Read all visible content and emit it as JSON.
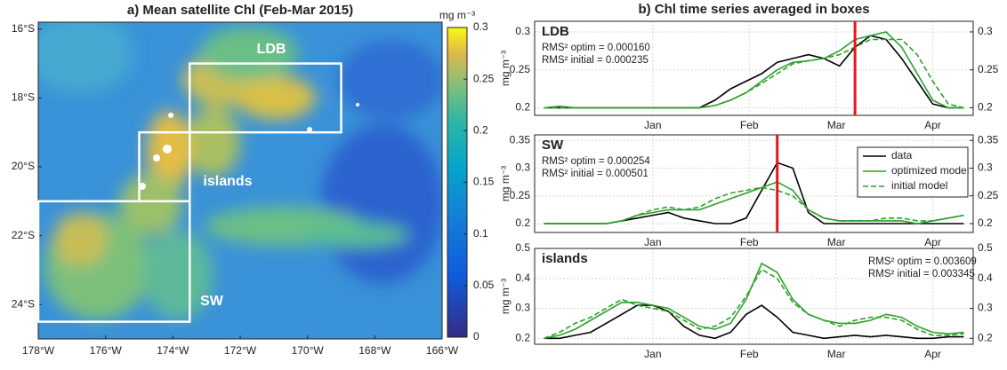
{
  "chart_data": [
    {
      "type": "map",
      "title": "a) Mean satellite Chl (Feb-Mar 2015)",
      "xlim": [
        -178,
        -166
      ],
      "ylim": [
        -25,
        -15.8
      ],
      "xticks": [
        {
          "value": -178,
          "label": "178°W"
        },
        {
          "value": -176,
          "label": "176°W"
        },
        {
          "value": -174,
          "label": "174°W"
        },
        {
          "value": -172,
          "label": "172°W"
        },
        {
          "value": -170,
          "label": "170°W"
        },
        {
          "value": -168,
          "label": "168°W"
        },
        {
          "value": -166,
          "label": "166°W"
        }
      ],
      "yticks": [
        {
          "value": -16,
          "label": "16°S"
        },
        {
          "value": -18,
          "label": "18°S"
        },
        {
          "value": -20,
          "label": "20°S"
        },
        {
          "value": -22,
          "label": "22°S"
        },
        {
          "value": -24,
          "label": "24°S"
        }
      ],
      "colorbar_label": "mg m⁻³",
      "clim": [
        0,
        0.3
      ],
      "cticks": [
        0,
        0.05,
        0.1,
        0.15,
        0.2,
        0.25,
        0.3
      ],
      "boxes": [
        {
          "name": "LDB",
          "lon": [
            -173.5,
            -169
          ],
          "lat": [
            -17,
            -19
          ]
        },
        {
          "name": "islands",
          "lon": [
            -175,
            -173.5
          ],
          "lat": [
            -19,
            -21
          ]
        },
        {
          "name": "SW",
          "lon": [
            -178,
            -173.5
          ],
          "lat": [
            -21,
            -24.5
          ]
        }
      ],
      "box_color": "#ffffff"
    },
    {
      "type": "line",
      "title": "b) Chl time series averaged in boxes",
      "panel_label": "LDB",
      "ylabel": "mg m⁻³",
      "annotations": [
        "RMS² optim = 0.000160",
        "RMS² initial = 0.000235"
      ],
      "x": [
        -35,
        -30,
        -25,
        -20,
        -15,
        -10,
        -5,
        0,
        5,
        10,
        15,
        20,
        25,
        30,
        35,
        40,
        45,
        50,
        55,
        60,
        65,
        70,
        75,
        80,
        85,
        90,
        95,
        100
      ],
      "xlim": [
        -38,
        103
      ],
      "xticks": [
        {
          "value": 0,
          "label": "Jan"
        },
        {
          "value": 31,
          "label": "Feb"
        },
        {
          "value": 59,
          "label": "Mar"
        },
        {
          "value": 90,
          "label": "Apr"
        }
      ],
      "ylim": [
        0.19,
        0.314
      ],
      "yticks": [
        0.2,
        0.25,
        0.3
      ],
      "y2lim": [
        0.19,
        0.314
      ],
      "y2ticks": [
        0.2,
        0.25,
        0.3
      ],
      "grid": true,
      "vline": {
        "x": 65,
        "color": "#e8141b"
      },
      "series": [
        {
          "name": "data",
          "color": "#000000",
          "dash": false,
          "values": [
            0.2,
            0.2,
            0.2,
            0.2,
            0.2,
            0.2,
            0.2,
            0.2,
            0.2,
            0.2,
            0.2,
            0.21,
            0.225,
            0.235,
            0.245,
            0.26,
            0.265,
            0.27,
            0.265,
            0.255,
            0.28,
            0.295,
            0.29,
            0.265,
            0.235,
            0.205,
            0.2,
            0.2
          ]
        },
        {
          "name": "optimized model",
          "color": "#2ca02c",
          "dash": false,
          "values": [
            0.2,
            0.202,
            0.2,
            0.2,
            0.2,
            0.2,
            0.2,
            0.2,
            0.2,
            0.2,
            0.2,
            0.203,
            0.21,
            0.22,
            0.235,
            0.25,
            0.26,
            0.262,
            0.265,
            0.275,
            0.29,
            0.295,
            0.3,
            0.28,
            0.245,
            0.21,
            0.2,
            0.2
          ]
        },
        {
          "name": "initial model",
          "color": "#2ca02c",
          "dash": true,
          "values": [
            0.2,
            0.2,
            0.2,
            0.2,
            0.2,
            0.2,
            0.2,
            0.2,
            0.2,
            0.2,
            0.2,
            0.203,
            0.21,
            0.22,
            0.232,
            0.245,
            0.258,
            0.262,
            0.265,
            0.27,
            0.28,
            0.29,
            0.29,
            0.29,
            0.27,
            0.235,
            0.205,
            0.2
          ]
        }
      ]
    },
    {
      "type": "line",
      "panel_label": "SW",
      "ylabel": "mg m⁻³",
      "annotations": [
        "RMS² optim = 0.000254",
        "RMS² initial = 0.000501"
      ],
      "x": [
        -35,
        -30,
        -25,
        -20,
        -15,
        -10,
        -5,
        0,
        5,
        10,
        15,
        20,
        25,
        30,
        35,
        40,
        45,
        50,
        55,
        60,
        65,
        70,
        75,
        80,
        85,
        90,
        95,
        100
      ],
      "xlim": [
        -38,
        103
      ],
      "xticks": [
        {
          "value": 0,
          "label": "Jan"
        },
        {
          "value": 31,
          "label": "Feb"
        },
        {
          "value": 59,
          "label": "Mar"
        },
        {
          "value": 90,
          "label": "Apr"
        }
      ],
      "ylim": [
        0.184,
        0.36
      ],
      "yticks": [
        0.2,
        0.25,
        0.3,
        0.35
      ],
      "y2lim": [
        0.184,
        0.36
      ],
      "y2ticks": [
        0.2,
        0.25,
        0.3,
        0.35
      ],
      "grid": true,
      "vline": {
        "x": 40,
        "color": "#e8141b"
      },
      "legend": "upper right",
      "series": [
        {
          "name": "data",
          "color": "#000000",
          "dash": false,
          "values": [
            0.2,
            0.2,
            0.2,
            0.2,
            0.2,
            0.205,
            0.21,
            0.215,
            0.22,
            0.21,
            0.205,
            0.2,
            0.2,
            0.21,
            0.26,
            0.31,
            0.3,
            0.22,
            0.2,
            0.2,
            0.2,
            0.2,
            0.2,
            0.2,
            0.2,
            0.2,
            0.2,
            0.2
          ]
        },
        {
          "name": "optimized model",
          "color": "#2ca02c",
          "dash": false,
          "values": [
            0.2,
            0.2,
            0.2,
            0.2,
            0.2,
            0.205,
            0.215,
            0.22,
            0.225,
            0.225,
            0.225,
            0.235,
            0.245,
            0.255,
            0.265,
            0.275,
            0.26,
            0.225,
            0.21,
            0.205,
            0.205,
            0.205,
            0.205,
            0.205,
            0.2,
            0.205,
            0.21,
            0.215
          ]
        },
        {
          "name": "initial model",
          "color": "#2ca02c",
          "dash": true,
          "values": [
            0.2,
            0.2,
            0.2,
            0.2,
            0.2,
            0.205,
            0.215,
            0.225,
            0.23,
            0.225,
            0.23,
            0.245,
            0.255,
            0.26,
            0.265,
            0.26,
            0.25,
            0.225,
            0.21,
            0.205,
            0.205,
            0.205,
            0.21,
            0.21,
            0.205,
            0.205,
            0.21,
            0.215
          ]
        }
      ]
    },
    {
      "type": "line",
      "panel_label": "islands",
      "ylabel": "mg m⁻³",
      "annotations": [
        "RMS² optim = 0.003609",
        "RMS² initial = 0.003345"
      ],
      "x": [
        -35,
        -30,
        -25,
        -20,
        -15,
        -10,
        -5,
        0,
        5,
        10,
        15,
        20,
        25,
        30,
        35,
        40,
        45,
        50,
        55,
        60,
        65,
        70,
        75,
        80,
        85,
        90,
        95,
        100
      ],
      "xlim": [
        -38,
        103
      ],
      "xticks": [
        {
          "value": 0,
          "label": "Jan"
        },
        {
          "value": 31,
          "label": "Feb"
        },
        {
          "value": 59,
          "label": "Mar"
        },
        {
          "value": 90,
          "label": "Apr"
        }
      ],
      "ylim": [
        0.18,
        0.5
      ],
      "yticks": [
        0.2,
        0.3,
        0.4,
        0.5
      ],
      "y2lim": [
        0.18,
        0.5
      ],
      "y2ticks": [
        0.2,
        0.3,
        0.4,
        0.5
      ],
      "grid": true,
      "series": [
        {
          "name": "data",
          "color": "#000000",
          "dash": false,
          "values": [
            0.2,
            0.2,
            0.21,
            0.22,
            0.25,
            0.28,
            0.31,
            0.31,
            0.29,
            0.24,
            0.21,
            0.2,
            0.22,
            0.28,
            0.31,
            0.27,
            0.22,
            0.21,
            0.2,
            0.205,
            0.21,
            0.205,
            0.21,
            0.205,
            0.2,
            0.2,
            0.205,
            0.205
          ]
        },
        {
          "name": "optimized model",
          "color": "#2ca02c",
          "dash": false,
          "values": [
            0.2,
            0.21,
            0.23,
            0.26,
            0.29,
            0.32,
            0.32,
            0.31,
            0.3,
            0.27,
            0.24,
            0.23,
            0.25,
            0.33,
            0.45,
            0.42,
            0.33,
            0.28,
            0.26,
            0.25,
            0.25,
            0.26,
            0.28,
            0.27,
            0.24,
            0.22,
            0.215,
            0.22
          ]
        },
        {
          "name": "initial model",
          "color": "#2ca02c",
          "dash": true,
          "values": [
            0.2,
            0.22,
            0.25,
            0.27,
            0.3,
            0.33,
            0.31,
            0.3,
            0.29,
            0.26,
            0.23,
            0.24,
            0.27,
            0.34,
            0.43,
            0.4,
            0.32,
            0.28,
            0.26,
            0.24,
            0.26,
            0.27,
            0.27,
            0.26,
            0.23,
            0.21,
            0.21,
            0.215
          ]
        }
      ]
    }
  ]
}
